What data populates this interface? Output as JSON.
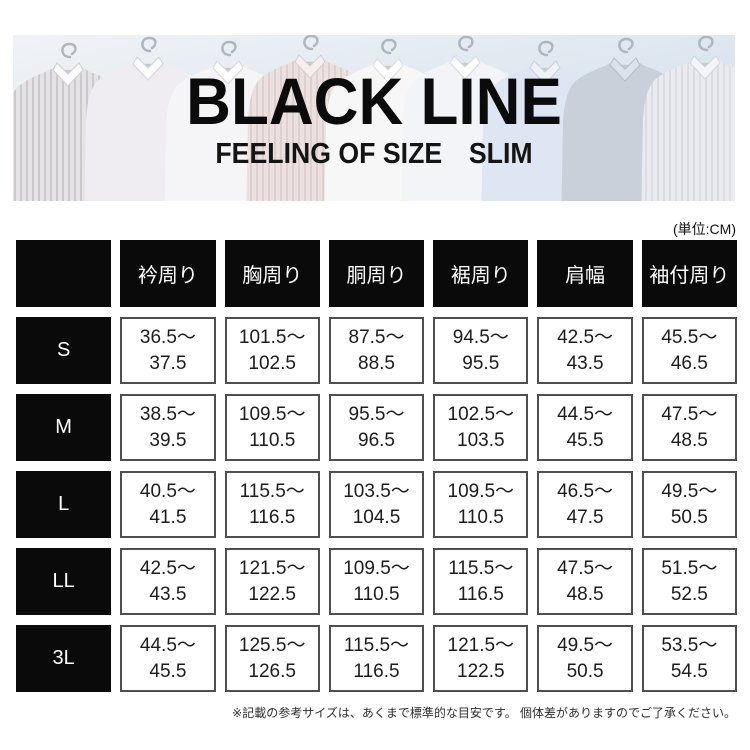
{
  "header": {
    "title": "BLACK LINE",
    "subtitle": "FEELING OF SIZE　SLIM",
    "shirt_colors": [
      "#e6e3e6",
      "#efedf2",
      "#f5f4f6",
      "#ece1de",
      "#f8f7f8",
      "#f2f4f7",
      "#dde6f2",
      "#c9d0da",
      "#e9ebf0"
    ]
  },
  "unit_label": "(単位:CM)",
  "size_table": {
    "columns": [
      "衿周り",
      "胸周り",
      "胴周り",
      "裾周り",
      "肩幅",
      "袖付周り"
    ],
    "rows": [
      {
        "size": "S",
        "values": [
          [
            "36.5〜",
            "37.5"
          ],
          [
            "101.5〜",
            "102.5"
          ],
          [
            "87.5〜",
            "88.5"
          ],
          [
            "94.5〜",
            "95.5"
          ],
          [
            "42.5〜",
            "43.5"
          ],
          [
            "45.5〜",
            "46.5"
          ]
        ]
      },
      {
        "size": "M",
        "values": [
          [
            "38.5〜",
            "39.5"
          ],
          [
            "109.5〜",
            "110.5"
          ],
          [
            "95.5〜",
            "96.5"
          ],
          [
            "102.5〜",
            "103.5"
          ],
          [
            "44.5〜",
            "45.5"
          ],
          [
            "47.5〜",
            "48.5"
          ]
        ]
      },
      {
        "size": "L",
        "values": [
          [
            "40.5〜",
            "41.5"
          ],
          [
            "115.5〜",
            "116.5"
          ],
          [
            "103.5〜",
            "104.5"
          ],
          [
            "109.5〜",
            "110.5"
          ],
          [
            "46.5〜",
            "47.5"
          ],
          [
            "49.5〜",
            "50.5"
          ]
        ]
      },
      {
        "size": "LL",
        "values": [
          [
            "42.5〜",
            "43.5"
          ],
          [
            "121.5〜",
            "122.5"
          ],
          [
            "109.5〜",
            "110.5"
          ],
          [
            "115.5〜",
            "116.5"
          ],
          [
            "47.5〜",
            "48.5"
          ],
          [
            "51.5〜",
            "52.5"
          ]
        ]
      },
      {
        "size": "3L",
        "values": [
          [
            "44.5〜",
            "45.5"
          ],
          [
            "125.5〜",
            "126.5"
          ],
          [
            "115.5〜",
            "116.5"
          ],
          [
            "121.5〜",
            "122.5"
          ],
          [
            "49.5〜",
            "50.5"
          ],
          [
            "53.5〜",
            "54.5"
          ]
        ]
      }
    ]
  },
  "footnote": "※記載の参考サイズは、あくまで標準的な目安です。 個体差がありますのでご了承ください。",
  "colors": {
    "table_black": "#0a0a0a",
    "cell_border": "#4f4f4f",
    "photo_bg_top": "#eef2f6",
    "photo_bg_bottom": "#cddcea",
    "hanger_silver": "#c3cad2"
  }
}
